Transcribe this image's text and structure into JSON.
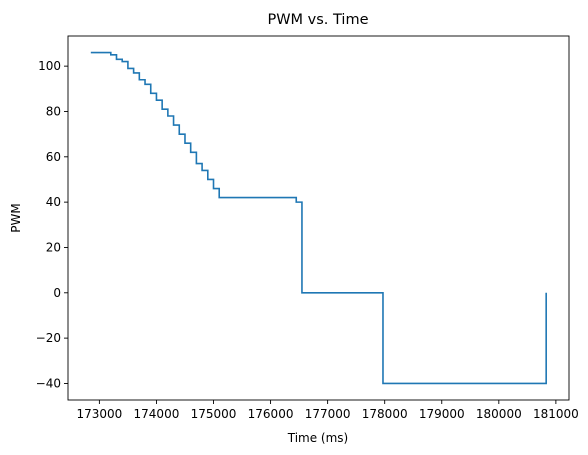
{
  "chart_data": {
    "type": "line",
    "title": "PWM vs. Time",
    "xlabel": "Time (ms)",
    "ylabel": "PWM",
    "xlim": [
      172450,
      181230
    ],
    "ylim": [
      -47.3,
      113.3
    ],
    "xticks": [
      173000,
      174000,
      175000,
      176000,
      177000,
      178000,
      179000,
      180000,
      181000
    ],
    "yticks": [
      -40,
      -20,
      0,
      20,
      40,
      60,
      80,
      100
    ],
    "grid": false,
    "legend": "none",
    "series": [
      {
        "color": "#1f77b4",
        "step": true,
        "x": [
          172850,
          173200,
          173300,
          173400,
          173500,
          173600,
          173700,
          173800,
          173900,
          174000,
          174100,
          174200,
          174300,
          174400,
          174500,
          174600,
          174700,
          174800,
          174900,
          175000,
          175100,
          176450,
          176550,
          177970,
          180830
        ],
        "y": [
          106,
          105,
          103,
          102,
          99,
          97,
          94,
          92,
          88,
          85,
          81,
          78,
          74,
          70,
          66,
          62,
          57,
          54,
          50,
          46,
          42,
          40,
          0,
          -40,
          0
        ]
      }
    ]
  }
}
